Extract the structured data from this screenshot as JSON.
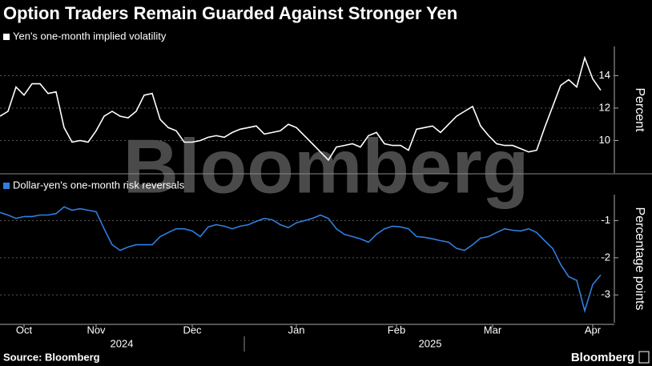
{
  "title": "Option Traders Remain Guarded Against Stronger Yen",
  "source": "Source: Bloomberg",
  "brand": "Bloomberg",
  "watermark": "Bloomberg",
  "chart_data": [
    {
      "type": "line",
      "axis_label": "Percent",
      "xlim": [
        0,
        153
      ],
      "ylim": [
        8,
        15.8
      ],
      "yticks": [
        10,
        12,
        14
      ],
      "grid": true,
      "x": [
        0,
        2,
        4,
        6,
        8,
        10,
        12,
        14,
        16,
        18,
        20,
        22,
        24,
        26,
        28,
        30,
        32,
        34,
        36,
        38,
        40,
        42,
        44,
        46,
        48,
        50,
        52,
        54,
        56,
        58,
        60,
        62,
        64,
        66,
        68,
        70,
        72,
        74,
        76,
        78,
        80,
        82,
        84,
        86,
        88,
        90,
        92,
        94,
        96,
        98,
        100,
        102,
        104,
        106,
        108,
        110,
        112,
        114,
        116,
        118,
        120,
        122,
        124,
        126,
        128,
        130,
        132,
        134,
        136,
        138,
        140,
        142,
        144,
        146,
        148,
        150
      ],
      "series": [
        {
          "name": "Yen's one-month implied volatility",
          "color": "#ffffff",
          "values": [
            11.5,
            11.8,
            13.3,
            12.8,
            13.5,
            13.5,
            12.9,
            13.0,
            10.8,
            9.9,
            10.0,
            9.9,
            10.6,
            11.5,
            11.8,
            11.5,
            11.4,
            11.8,
            12.8,
            12.9,
            11.3,
            10.8,
            10.6,
            9.9,
            9.9,
            10.0,
            10.2,
            10.3,
            10.2,
            10.5,
            10.7,
            10.8,
            10.9,
            10.4,
            10.5,
            10.6,
            11.0,
            10.8,
            10.3,
            9.8,
            9.3,
            8.8,
            9.6,
            9.7,
            9.8,
            9.6,
            10.3,
            10.5,
            9.8,
            9.7,
            9.7,
            9.4,
            10.7,
            10.8,
            10.9,
            10.5,
            11.0,
            11.5,
            11.8,
            12.1,
            10.9,
            10.3,
            9.8,
            9.7,
            9.7,
            9.5,
            9.3,
            9.4,
            10.8,
            12.1,
            13.4,
            13.75,
            13.3,
            15.1,
            13.8,
            13.1
          ]
        }
      ]
    },
    {
      "type": "line",
      "axis_label": "Percentage points",
      "xlim": [
        0,
        153
      ],
      "ylim": [
        -3.75,
        -0.3
      ],
      "yticks": [
        -1,
        -2,
        -3
      ],
      "grid": true,
      "xticks": [
        {
          "value": 6,
          "label": "Oct"
        },
        {
          "value": 24,
          "label": "Nov"
        },
        {
          "value": 48,
          "label": "Dec"
        },
        {
          "value": 74,
          "label": "Jan"
        },
        {
          "value": 99,
          "label": "Feb"
        },
        {
          "value": 123,
          "label": "Mar"
        },
        {
          "value": 148,
          "label": "Apr"
        }
      ],
      "year_labels": [
        "2024",
        "2025"
      ],
      "x": [
        0,
        2,
        4,
        6,
        8,
        10,
        12,
        14,
        16,
        18,
        20,
        22,
        24,
        26,
        28,
        30,
        32,
        34,
        36,
        38,
        40,
        42,
        44,
        46,
        48,
        50,
        52,
        54,
        56,
        58,
        60,
        62,
        64,
        66,
        68,
        70,
        72,
        74,
        76,
        78,
        80,
        82,
        84,
        86,
        88,
        90,
        92,
        94,
        96,
        98,
        100,
        102,
        104,
        106,
        108,
        110,
        112,
        114,
        116,
        118,
        120,
        122,
        124,
        126,
        128,
        130,
        132,
        134,
        136,
        138,
        140,
        142,
        144,
        146,
        148,
        150
      ],
      "series": [
        {
          "name": "Dollar-yen's one-month risk reversals",
          "color": "#2f7fe0",
          "values": [
            -0.78,
            -0.85,
            -0.94,
            -0.89,
            -0.89,
            -0.85,
            -0.85,
            -0.81,
            -0.63,
            -0.72,
            -0.68,
            -0.72,
            -0.76,
            -1.22,
            -1.65,
            -1.8,
            -1.71,
            -1.65,
            -1.65,
            -1.65,
            -1.43,
            -1.32,
            -1.22,
            -1.22,
            -1.28,
            -1.43,
            -1.17,
            -1.11,
            -1.15,
            -1.22,
            -1.15,
            -1.11,
            -1.02,
            -0.94,
            -0.98,
            -1.11,
            -1.19,
            -1.06,
            -1.0,
            -0.94,
            -0.85,
            -0.94,
            -1.22,
            -1.37,
            -1.43,
            -1.49,
            -1.58,
            -1.37,
            -1.22,
            -1.15,
            -1.17,
            -1.22,
            -1.43,
            -1.45,
            -1.49,
            -1.54,
            -1.58,
            -1.75,
            -1.8,
            -1.65,
            -1.47,
            -1.43,
            -1.32,
            -1.22,
            -1.26,
            -1.28,
            -1.22,
            -1.32,
            -1.54,
            -1.75,
            -2.18,
            -2.51,
            -2.61,
            -3.43,
            -2.72,
            -2.46
          ]
        }
      ]
    }
  ]
}
